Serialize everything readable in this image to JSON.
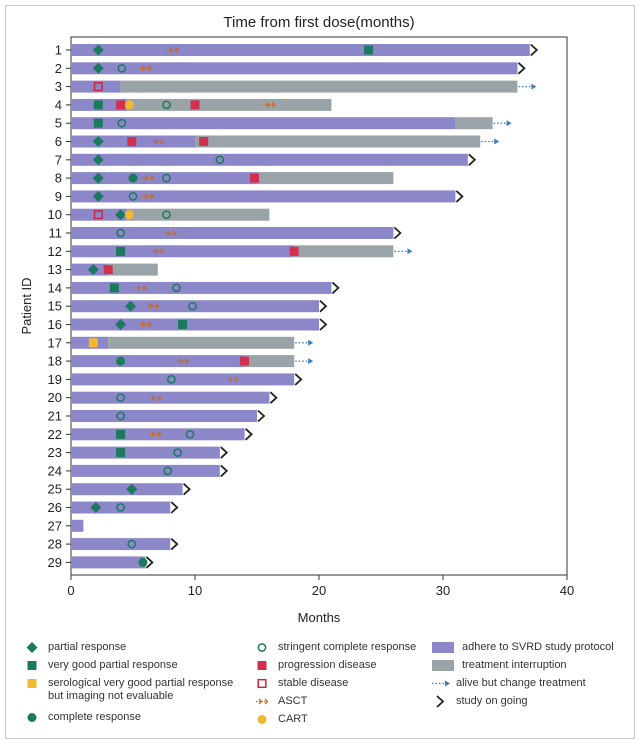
{
  "chart_data": {
    "type": "swimmer",
    "title": "Time from first dose(months)",
    "xlabel": "Months",
    "ylabel": "Patient ID",
    "xlim": [
      0,
      40
    ],
    "xticks": [
      0,
      10,
      20,
      30,
      40
    ],
    "colors": {
      "adhere": "#8b87c8",
      "interruption": "#9aa3a8",
      "partial_response": "#1b7a5e",
      "very_good_partial_response": "#1b7a5e",
      "serological_vgpr": "#f2b830",
      "complete_response": "#1b7a5e",
      "stringent_complete_response": "#1b7a5e",
      "progression_disease": "#d32f4e",
      "stable_disease": "#c8283c",
      "asct": "#c86a28",
      "cart": "#f2b830",
      "alive_arrow": "#3a7fb8",
      "ongoing": "#222222"
    },
    "patients": [
      {
        "id": "1",
        "segments": [
          {
            "type": "adhere",
            "start": 0,
            "end": 37
          }
        ],
        "end_marker": "ongoing",
        "markers": [
          {
            "type": "partial_response",
            "x": 2.2
          },
          {
            "type": "asct",
            "x": 8.2
          },
          {
            "type": "very_good_partial_response",
            "x": 24
          }
        ]
      },
      {
        "id": "2",
        "segments": [
          {
            "type": "adhere",
            "start": 0,
            "end": 36
          }
        ],
        "end_marker": "ongoing",
        "markers": [
          {
            "type": "partial_response",
            "x": 2.2
          },
          {
            "type": "stringent_complete_response",
            "x": 4.1
          },
          {
            "type": "asct",
            "x": 6
          }
        ]
      },
      {
        "id": "3",
        "segments": [
          {
            "type": "adhere",
            "start": 0,
            "end": 4
          },
          {
            "type": "interruption",
            "start": 4,
            "end": 36
          }
        ],
        "end_marker": "alive",
        "markers": [
          {
            "type": "stable_disease",
            "x": 2.2
          }
        ]
      },
      {
        "id": "4",
        "segments": [
          {
            "type": "adhere",
            "start": 0,
            "end": 4.5
          },
          {
            "type": "interruption",
            "start": 4.5,
            "end": 21
          }
        ],
        "end_marker": "none",
        "markers": [
          {
            "type": "very_good_partial_response",
            "x": 2.2
          },
          {
            "type": "progression_disease",
            "x": 4
          },
          {
            "type": "cart",
            "x": 4.7
          },
          {
            "type": "stringent_complete_response",
            "x": 7.7
          },
          {
            "type": "progression_disease",
            "x": 10
          },
          {
            "type": "asct",
            "x": 16
          }
        ]
      },
      {
        "id": "5",
        "segments": [
          {
            "type": "adhere",
            "start": 0,
            "end": 31
          },
          {
            "type": "interruption",
            "start": 31,
            "end": 34
          }
        ],
        "end_marker": "alive",
        "markers": [
          {
            "type": "very_good_partial_response",
            "x": 2.2
          },
          {
            "type": "stringent_complete_response",
            "x": 4.1
          }
        ]
      },
      {
        "id": "6",
        "segments": [
          {
            "type": "adhere",
            "start": 0,
            "end": 10
          },
          {
            "type": "interruption",
            "start": 10,
            "end": 33
          }
        ],
        "end_marker": "alive",
        "markers": [
          {
            "type": "partial_response",
            "x": 2.2
          },
          {
            "type": "progression_disease",
            "x": 4.9
          },
          {
            "type": "asct",
            "x": 7
          },
          {
            "type": "progression_disease",
            "x": 10.7
          }
        ]
      },
      {
        "id": "7",
        "segments": [
          {
            "type": "adhere",
            "start": 0,
            "end": 32
          }
        ],
        "end_marker": "ongoing",
        "markers": [
          {
            "type": "partial_response",
            "x": 2.2
          },
          {
            "type": "stringent_complete_response",
            "x": 12
          }
        ]
      },
      {
        "id": "8",
        "segments": [
          {
            "type": "adhere",
            "start": 0,
            "end": 15
          },
          {
            "type": "interruption",
            "start": 15,
            "end": 26
          }
        ],
        "end_marker": "none",
        "markers": [
          {
            "type": "partial_response",
            "x": 2.2
          },
          {
            "type": "complete_response",
            "x": 5
          },
          {
            "type": "asct",
            "x": 6.2
          },
          {
            "type": "stringent_complete_response",
            "x": 7.7
          },
          {
            "type": "progression_disease",
            "x": 14.8
          }
        ]
      },
      {
        "id": "9",
        "segments": [
          {
            "type": "adhere",
            "start": 0,
            "end": 31
          }
        ],
        "end_marker": "ongoing",
        "markers": [
          {
            "type": "partial_response",
            "x": 2.2
          },
          {
            "type": "stringent_complete_response",
            "x": 5
          },
          {
            "type": "asct",
            "x": 6.2
          }
        ]
      },
      {
        "id": "10",
        "segments": [
          {
            "type": "adhere",
            "start": 0,
            "end": 4.5
          },
          {
            "type": "interruption",
            "start": 4.5,
            "end": 16
          }
        ],
        "end_marker": "none",
        "markers": [
          {
            "type": "stable_disease",
            "x": 2.2
          },
          {
            "type": "partial_response",
            "x": 4
          },
          {
            "type": "cart",
            "x": 4.7
          },
          {
            "type": "stringent_complete_response",
            "x": 7.7
          }
        ]
      },
      {
        "id": "11",
        "segments": [
          {
            "type": "adhere",
            "start": 0,
            "end": 26
          }
        ],
        "end_marker": "ongoing",
        "markers": [
          {
            "type": "stringent_complete_response",
            "x": 4
          },
          {
            "type": "asct",
            "x": 8
          }
        ]
      },
      {
        "id": "12",
        "segments": [
          {
            "type": "adhere",
            "start": 0,
            "end": 18
          },
          {
            "type": "interruption",
            "start": 18,
            "end": 26
          }
        ],
        "end_marker": "alive",
        "markers": [
          {
            "type": "very_good_partial_response",
            "x": 4
          },
          {
            "type": "asct",
            "x": 7
          },
          {
            "type": "progression_disease",
            "x": 18
          }
        ]
      },
      {
        "id": "13",
        "segments": [
          {
            "type": "adhere",
            "start": 0,
            "end": 3
          },
          {
            "type": "interruption",
            "start": 3,
            "end": 7
          }
        ],
        "end_marker": "none",
        "markers": [
          {
            "type": "partial_response",
            "x": 1.8
          },
          {
            "type": "progression_disease",
            "x": 3
          }
        ]
      },
      {
        "id": "14",
        "segments": [
          {
            "type": "adhere",
            "start": 0,
            "end": 21
          }
        ],
        "end_marker": "ongoing",
        "markers": [
          {
            "type": "very_good_partial_response",
            "x": 3.5
          },
          {
            "type": "asct",
            "x": 5.6
          },
          {
            "type": "stringent_complete_response",
            "x": 8.5
          }
        ]
      },
      {
        "id": "15",
        "segments": [
          {
            "type": "adhere",
            "start": 0,
            "end": 20
          }
        ],
        "end_marker": "ongoing",
        "markers": [
          {
            "type": "partial_response",
            "x": 4.8
          },
          {
            "type": "asct",
            "x": 6.6
          },
          {
            "type": "stringent_complete_response",
            "x": 9.8
          }
        ]
      },
      {
        "id": "16",
        "segments": [
          {
            "type": "adhere",
            "start": 0,
            "end": 20
          }
        ],
        "end_marker": "ongoing",
        "markers": [
          {
            "type": "partial_response",
            "x": 4
          },
          {
            "type": "asct",
            "x": 6
          },
          {
            "type": "very_good_partial_response",
            "x": 9
          }
        ]
      },
      {
        "id": "17",
        "segments": [
          {
            "type": "adhere",
            "start": 0,
            "end": 3
          },
          {
            "type": "interruption",
            "start": 3,
            "end": 18
          }
        ],
        "end_marker": "alive",
        "markers": [
          {
            "type": "serological_vgpr",
            "x": 1.8
          }
        ]
      },
      {
        "id": "18",
        "segments": [
          {
            "type": "adhere",
            "start": 0,
            "end": 14
          },
          {
            "type": "interruption",
            "start": 14,
            "end": 18
          }
        ],
        "end_marker": "alive",
        "markers": [
          {
            "type": "complete_response",
            "x": 4
          },
          {
            "type": "asct",
            "x": 9
          },
          {
            "type": "progression_disease",
            "x": 14
          }
        ]
      },
      {
        "id": "19",
        "segments": [
          {
            "type": "adhere",
            "start": 0,
            "end": 18
          }
        ],
        "end_marker": "ongoing",
        "markers": [
          {
            "type": "stringent_complete_response",
            "x": 8.1
          },
          {
            "type": "asct",
            "x": 13
          }
        ]
      },
      {
        "id": "20",
        "segments": [
          {
            "type": "adhere",
            "start": 0,
            "end": 16
          }
        ],
        "end_marker": "ongoing",
        "markers": [
          {
            "type": "stringent_complete_response",
            "x": 4
          },
          {
            "type": "asct",
            "x": 6.8
          }
        ]
      },
      {
        "id": "21",
        "segments": [
          {
            "type": "adhere",
            "start": 0,
            "end": 15
          }
        ],
        "end_marker": "ongoing",
        "markers": [
          {
            "type": "stringent_complete_response",
            "x": 4
          }
        ]
      },
      {
        "id": "22",
        "segments": [
          {
            "type": "adhere",
            "start": 0,
            "end": 14
          }
        ],
        "end_marker": "ongoing",
        "markers": [
          {
            "type": "very_good_partial_response",
            "x": 4
          },
          {
            "type": "asct",
            "x": 6.8
          },
          {
            "type": "stringent_complete_response",
            "x": 9.6
          }
        ]
      },
      {
        "id": "23",
        "segments": [
          {
            "type": "adhere",
            "start": 0,
            "end": 12
          }
        ],
        "end_marker": "ongoing",
        "markers": [
          {
            "type": "very_good_partial_response",
            "x": 4
          },
          {
            "type": "stringent_complete_response",
            "x": 8.6
          }
        ]
      },
      {
        "id": "24",
        "segments": [
          {
            "type": "adhere",
            "start": 0,
            "end": 12
          }
        ],
        "end_marker": "ongoing",
        "markers": [
          {
            "type": "stringent_complete_response",
            "x": 7.8
          }
        ]
      },
      {
        "id": "25",
        "segments": [
          {
            "type": "adhere",
            "start": 0,
            "end": 9
          }
        ],
        "end_marker": "ongoing",
        "markers": [
          {
            "type": "partial_response",
            "x": 4.9
          }
        ]
      },
      {
        "id": "26",
        "segments": [
          {
            "type": "adhere",
            "start": 0,
            "end": 8
          }
        ],
        "end_marker": "ongoing",
        "markers": [
          {
            "type": "partial_response",
            "x": 2
          },
          {
            "type": "stringent_complete_response",
            "x": 4
          }
        ]
      },
      {
        "id": "27",
        "segments": [
          {
            "type": "adhere",
            "start": 0,
            "end": 1
          }
        ],
        "end_marker": "none",
        "markers": []
      },
      {
        "id": "28",
        "segments": [
          {
            "type": "adhere",
            "start": 0,
            "end": 8
          }
        ],
        "end_marker": "ongoing",
        "markers": [
          {
            "type": "stringent_complete_response",
            "x": 4.9
          }
        ]
      },
      {
        "id": "29",
        "segments": [
          {
            "type": "adhere",
            "start": 0,
            "end": 6
          }
        ],
        "end_marker": "ongoing",
        "markers": [
          {
            "type": "complete_response",
            "x": 5.8
          }
        ]
      }
    ],
    "legend": [
      {
        "key": "partial_response",
        "label": "partial response"
      },
      {
        "key": "very_good_partial_response",
        "label": "very good partial response"
      },
      {
        "key": "serological_vgpr",
        "label": "serological very good partial response but imaging not evaluable"
      },
      {
        "key": "complete_response",
        "label": "complete response"
      },
      {
        "key": "stringent_complete_response",
        "label": "stringent complete response"
      },
      {
        "key": "progression_disease",
        "label": "progression disease"
      },
      {
        "key": "stable_disease",
        "label": "stable disease"
      },
      {
        "key": "asct",
        "label": "ASCT"
      },
      {
        "key": "cart",
        "label": "CART"
      },
      {
        "key": "adhere",
        "label": "adhere to SVRD study protocol"
      },
      {
        "key": "interruption",
        "label": "treatment interruption"
      },
      {
        "key": "alive",
        "label": "alive but change treatment"
      },
      {
        "key": "ongoing",
        "label": "study on going"
      }
    ]
  }
}
